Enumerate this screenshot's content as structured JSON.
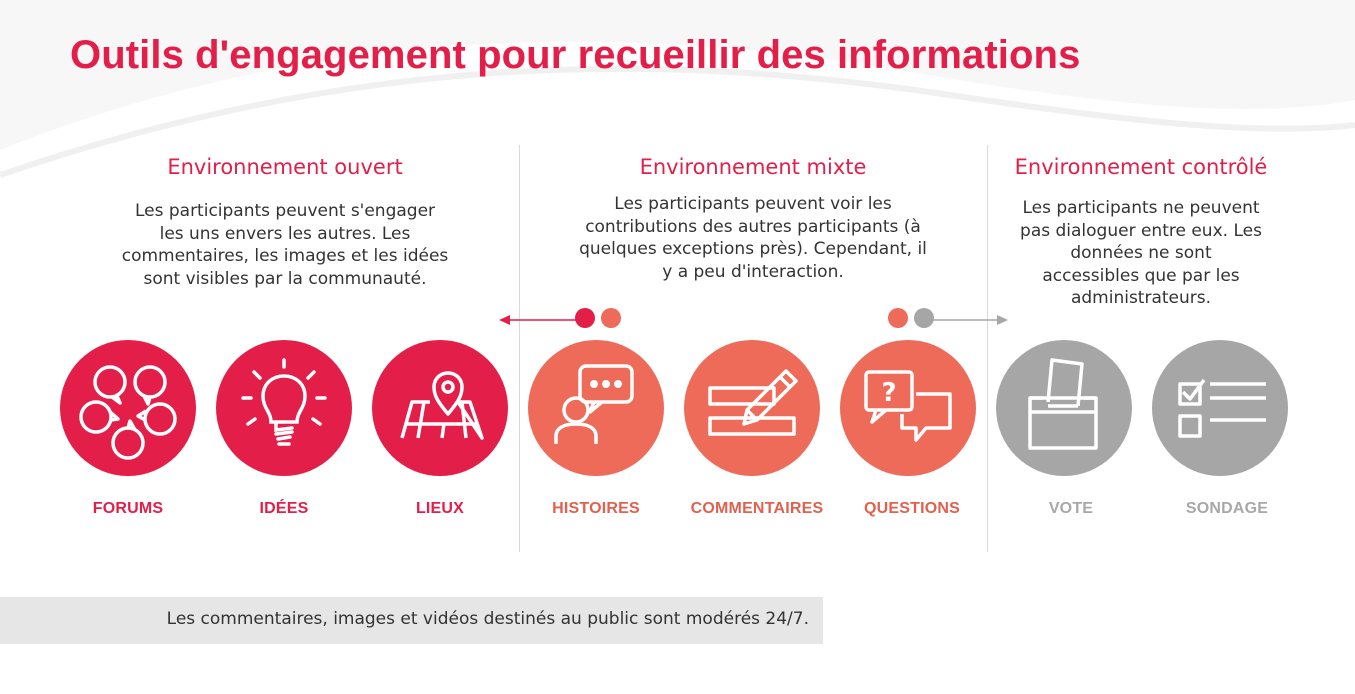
{
  "title": "Outils d'engagement pour recueillir des informations",
  "colors": {
    "red": "#e31e48",
    "coral": "#ee6b59",
    "gray": "#a6a6a6",
    "label_red": "#e31e48",
    "label_coral": "#e0614f",
    "label_gray": "#a8a8a8"
  },
  "sections": [
    {
      "heading": "Environnement ouvert",
      "description": [
        "Les participants peuvent s'engager",
        "les uns envers les autres. Les",
        "commentaires, les images et les idées",
        "sont visibles par la communauté."
      ]
    },
    {
      "heading": "Environnement mixte",
      "description": [
        "Les participants peuvent voir les",
        "contributions des autres participants (à",
        "quelques exceptions près). Cependant, il",
        "y a peu d'interaction."
      ]
    },
    {
      "heading": "Environnement contrôlé",
      "description": [
        "Les participants ne peuvent",
        "pas dialoguer entre eux. Les",
        "données ne sont",
        "accessibles que par les",
        "administrateurs."
      ]
    }
  ],
  "tools": [
    {
      "label": "FORUMS",
      "icon": "speech-bubbles-cycle-icon"
    },
    {
      "label": "IDÉES",
      "icon": "lightbulb-icon"
    },
    {
      "label": "LIEUX",
      "icon": "map-pin-icon"
    },
    {
      "label": "HISTOIRES",
      "icon": "person-speech-icon"
    },
    {
      "label": "COMMENTAIRES",
      "icon": "pencil-comment-icon"
    },
    {
      "label": "QUESTIONS",
      "icon": "question-bubbles-icon"
    },
    {
      "label": "VOTE",
      "icon": "ballot-box-icon"
    },
    {
      "label": "SONDAGE",
      "icon": "survey-checklist-icon"
    }
  ],
  "footer": "Les commentaires, images et vidéos destinés au public sont modérés 24/7."
}
